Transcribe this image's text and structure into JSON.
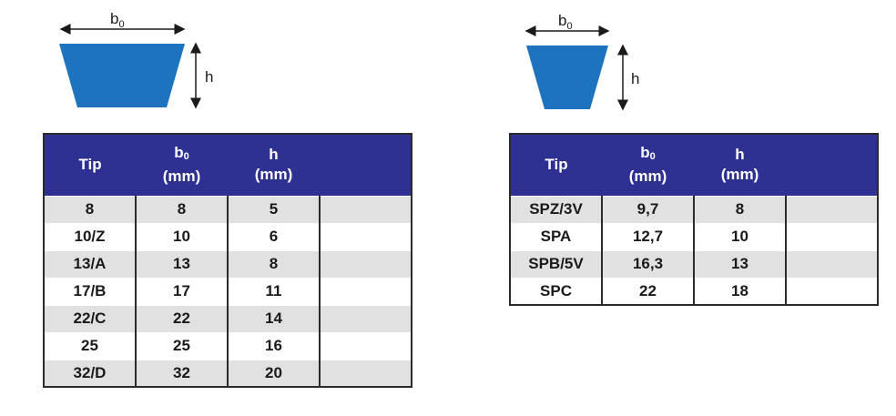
{
  "left": {
    "diagram": {
      "width_label": "b",
      "width_sub": "0",
      "height_label": "h"
    },
    "headers": {
      "tip": "Tip",
      "b": "b",
      "b_sub": "0",
      "b_unit": "(mm)",
      "h": "h",
      "h_unit": "(mm)",
      "extra": ""
    },
    "rows": [
      {
        "tip": "8",
        "b0": "8",
        "h": "5",
        "extra": ""
      },
      {
        "tip": "10/Z",
        "b0": "10",
        "h": "6",
        "extra": ""
      },
      {
        "tip": "13/A",
        "b0": "13",
        "h": "8",
        "extra": ""
      },
      {
        "tip": "17/B",
        "b0": "17",
        "h": "11",
        "extra": ""
      },
      {
        "tip": "22/C",
        "b0": "22",
        "h": "14",
        "extra": ""
      },
      {
        "tip": "25",
        "b0": "25",
        "h": "16",
        "extra": ""
      },
      {
        "tip": "32/D",
        "b0": "32",
        "h": "20",
        "extra": ""
      }
    ]
  },
  "right": {
    "diagram": {
      "width_label": "b",
      "width_sub": "0",
      "height_label": "h"
    },
    "headers": {
      "tip": "Tip",
      "b": "b",
      "b_sub": "0",
      "b_unit": "(mm)",
      "h": "h",
      "h_unit": "(mm)",
      "extra": ""
    },
    "rows": [
      {
        "tip": "SPZ/3V",
        "b0": "9,7",
        "h": "8",
        "extra": ""
      },
      {
        "tip": "SPA",
        "b0": "12,7",
        "h": "10",
        "extra": ""
      },
      {
        "tip": "SPB/5V",
        "b0": "16,3",
        "h": "13",
        "extra": ""
      },
      {
        "tip": "SPC",
        "b0": "22",
        "h": "18",
        "extra": ""
      }
    ]
  },
  "colors": {
    "belt_blue": "#1e73be",
    "header_navy": "#2e3192",
    "row_gray": "#e1e1e1",
    "border": "#2b2b2b"
  }
}
